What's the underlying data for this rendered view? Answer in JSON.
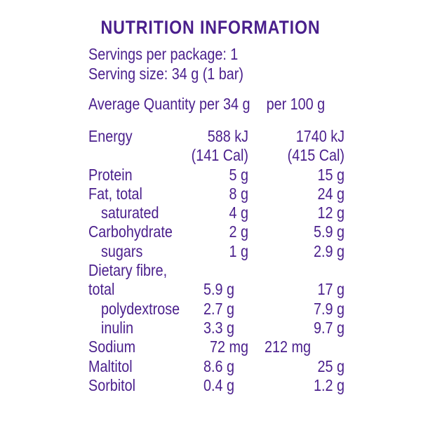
{
  "title": "NUTRITION INFORMATION",
  "servings_per_package": "Servings per package: 1",
  "serving_size": "Serving size: 34 g (1 bar)",
  "header": {
    "label": "Average Quantity",
    "col1": "per 34 g",
    "col2": "per 100 g"
  },
  "rows": [
    {
      "name": "Energy",
      "v34": "588 kJ",
      "v100": "1740 kJ"
    },
    {
      "name": "",
      "v34": "(141 Cal)",
      "v100": "(415 Cal)"
    },
    {
      "name": "Protein",
      "v34": "5 g",
      "v100": "15 g"
    },
    {
      "name": "Fat, total",
      "v34": "8 g",
      "v100": "24 g"
    },
    {
      "name": "saturated",
      "v34": "4 g",
      "v100": "12 g"
    },
    {
      "name": "Carbohydrate",
      "v34": "2 g",
      "v100": "5.9 g"
    },
    {
      "name": "sugars",
      "v34": "1 g",
      "v100": "2.9 g"
    },
    {
      "name": "Dietary fibre,",
      "v34": "",
      "v100": ""
    },
    {
      "name": "total",
      "v34": "5.9 g",
      "v100": "17 g"
    },
    {
      "name": "polydextrose",
      "v34": "2.7 g",
      "v100": "7.9 g"
    },
    {
      "name": "inulin",
      "v34": "3.3 g",
      "v100": "9.7 g"
    },
    {
      "name": "Sodium",
      "v34": "72 mg",
      "v100": "212 mg"
    },
    {
      "name": "Maltitol",
      "v34": "8.6 g",
      "v100": "25 g"
    },
    {
      "name": "Sorbitol",
      "v34": "0.4 g",
      "v100": "1.2 g"
    }
  ],
  "colors": {
    "text": "#4a1f8c",
    "background": "#ffffff"
  }
}
